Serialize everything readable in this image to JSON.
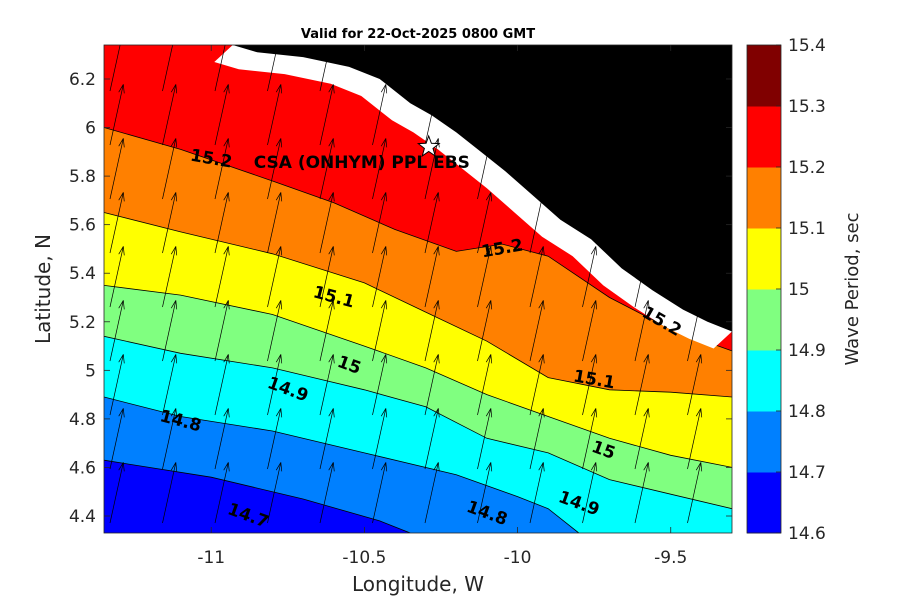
{
  "chart_data": {
    "type": "contour",
    "title": "Valid for 22-Oct-2025 0800 GMT",
    "xlabel": "Longitude, W",
    "ylabel": "Latitude, N",
    "colorbar_label": "Wave Period, sec",
    "xlim": [
      -11.35,
      -9.3
    ],
    "ylim": [
      4.33,
      6.34
    ],
    "x_ticks": [
      -11,
      -10.5,
      -10,
      -9.5
    ],
    "x_tick_labels": [
      "-11",
      "-10.5",
      "-10",
      "-9.5"
    ],
    "y_ticks": [
      4.4,
      4.6,
      4.8,
      5,
      5.2,
      5.4,
      5.6,
      5.8,
      6,
      6.2
    ],
    "y_tick_labels": [
      "4.4",
      "4.6",
      "4.8",
      "5",
      "5.2",
      "5.4",
      "5.6",
      "5.8",
      "6",
      "6.2"
    ],
    "levels": [
      14.6,
      14.7,
      14.8,
      14.9,
      15,
      15.1,
      15.2,
      15.3,
      15.4
    ],
    "level_labels": [
      "14.6",
      "14.7",
      "14.8",
      "14.9",
      "15",
      "15.1",
      "15.2",
      "15.3",
      "15.4"
    ],
    "band_colors": [
      "#0000ff",
      "#0080ff",
      "#00ffff",
      "#80ff80",
      "#ffff00",
      "#ff8000",
      "#ff0000",
      "#800000"
    ],
    "land_color": "#000000",
    "contours": [
      {
        "level": 14.7,
        "points": [
          [
            -11.35,
            4.63
          ],
          [
            -11.0,
            4.56
          ],
          [
            -10.7,
            4.47
          ],
          [
            -10.45,
            4.38
          ],
          [
            -10.35,
            4.33
          ]
        ]
      },
      {
        "level": 14.8,
        "points": [
          [
            -11.35,
            4.89
          ],
          [
            -11.1,
            4.81
          ],
          [
            -10.8,
            4.75
          ],
          [
            -10.5,
            4.66
          ],
          [
            -10.2,
            4.57
          ],
          [
            -10.0,
            4.48
          ],
          [
            -9.9,
            4.43
          ],
          [
            -9.8,
            4.33
          ]
        ]
      },
      {
        "level": 14.9,
        "points": [
          [
            -11.35,
            5.14
          ],
          [
            -11.1,
            5.07
          ],
          [
            -10.8,
            5.01
          ],
          [
            -10.5,
            4.92
          ],
          [
            -10.3,
            4.85
          ],
          [
            -10.1,
            4.72
          ],
          [
            -9.9,
            4.66
          ],
          [
            -9.7,
            4.55
          ],
          [
            -9.5,
            4.49
          ],
          [
            -9.3,
            4.43
          ]
        ]
      },
      {
        "level": 15.0,
        "points": [
          [
            -11.35,
            5.35
          ],
          [
            -11.1,
            5.31
          ],
          [
            -10.8,
            5.23
          ],
          [
            -10.5,
            5.1
          ],
          [
            -10.3,
            5.01
          ],
          [
            -10.1,
            4.9
          ],
          [
            -9.9,
            4.81
          ],
          [
            -9.7,
            4.72
          ],
          [
            -9.5,
            4.65
          ],
          [
            -9.3,
            4.6
          ]
        ]
      },
      {
        "level": 15.1,
        "points": [
          [
            -11.35,
            5.65
          ],
          [
            -11.1,
            5.57
          ],
          [
            -10.8,
            5.48
          ],
          [
            -10.5,
            5.36
          ],
          [
            -10.3,
            5.24
          ],
          [
            -10.1,
            5.12
          ],
          [
            -9.9,
            4.97
          ],
          [
            -9.7,
            4.92
          ],
          [
            -9.5,
            4.91
          ],
          [
            -9.3,
            4.89
          ]
        ]
      },
      {
        "level": 15.2,
        "points": [
          [
            -11.35,
            6.0
          ],
          [
            -11.1,
            5.91
          ],
          [
            -10.8,
            5.78
          ],
          [
            -10.6,
            5.69
          ],
          [
            -10.4,
            5.58
          ],
          [
            -10.2,
            5.49
          ],
          [
            -10.05,
            5.52
          ],
          [
            -9.9,
            5.47
          ],
          [
            -9.7,
            5.3
          ],
          [
            -9.5,
            5.17
          ],
          [
            -9.3,
            5.08
          ]
        ]
      },
      {
        "level": 15.3,
        "points": [
          [
            -10.93,
            6.34
          ],
          [
            -10.8,
            6.29
          ],
          [
            -10.68,
            6.25
          ],
          [
            -10.6,
            6.22
          ]
        ]
      }
    ],
    "contour_labels": [
      {
        "text": "15.2",
        "lon": -11.0,
        "lat": 5.87,
        "angle": 10
      },
      {
        "text": "15.2",
        "lon": -10.05,
        "lat": 5.5,
        "angle": -10
      },
      {
        "text": "15.2",
        "lon": -9.53,
        "lat": 5.2,
        "angle": 30
      },
      {
        "text": "15.1",
        "lon": -10.6,
        "lat": 5.3,
        "angle": 15
      },
      {
        "text": "15.1",
        "lon": -9.75,
        "lat": 4.96,
        "angle": 10
      },
      {
        "text": "15",
        "lon": -10.55,
        "lat": 5.02,
        "angle": 20
      },
      {
        "text": "15",
        "lon": -9.72,
        "lat": 4.67,
        "angle": 20
      },
      {
        "text": "14.9",
        "lon": -10.75,
        "lat": 4.92,
        "angle": 20
      },
      {
        "text": "14.9",
        "lon": -9.8,
        "lat": 4.45,
        "angle": 20
      },
      {
        "text": "14.8",
        "lon": -11.1,
        "lat": 4.79,
        "angle": 15
      },
      {
        "text": "14.8",
        "lon": -10.1,
        "lat": 4.41,
        "angle": 20
      },
      {
        "text": "14.7",
        "lon": -10.88,
        "lat": 4.4,
        "angle": 20
      }
    ],
    "station": {
      "name": "CSA (ONHYM) PPL EBS",
      "lon": -10.29,
      "lat": 5.92
    },
    "vector_field": {
      "u": 0.22,
      "v": 1.0,
      "description": "uniform north-northeast wave direction arrows"
    }
  }
}
